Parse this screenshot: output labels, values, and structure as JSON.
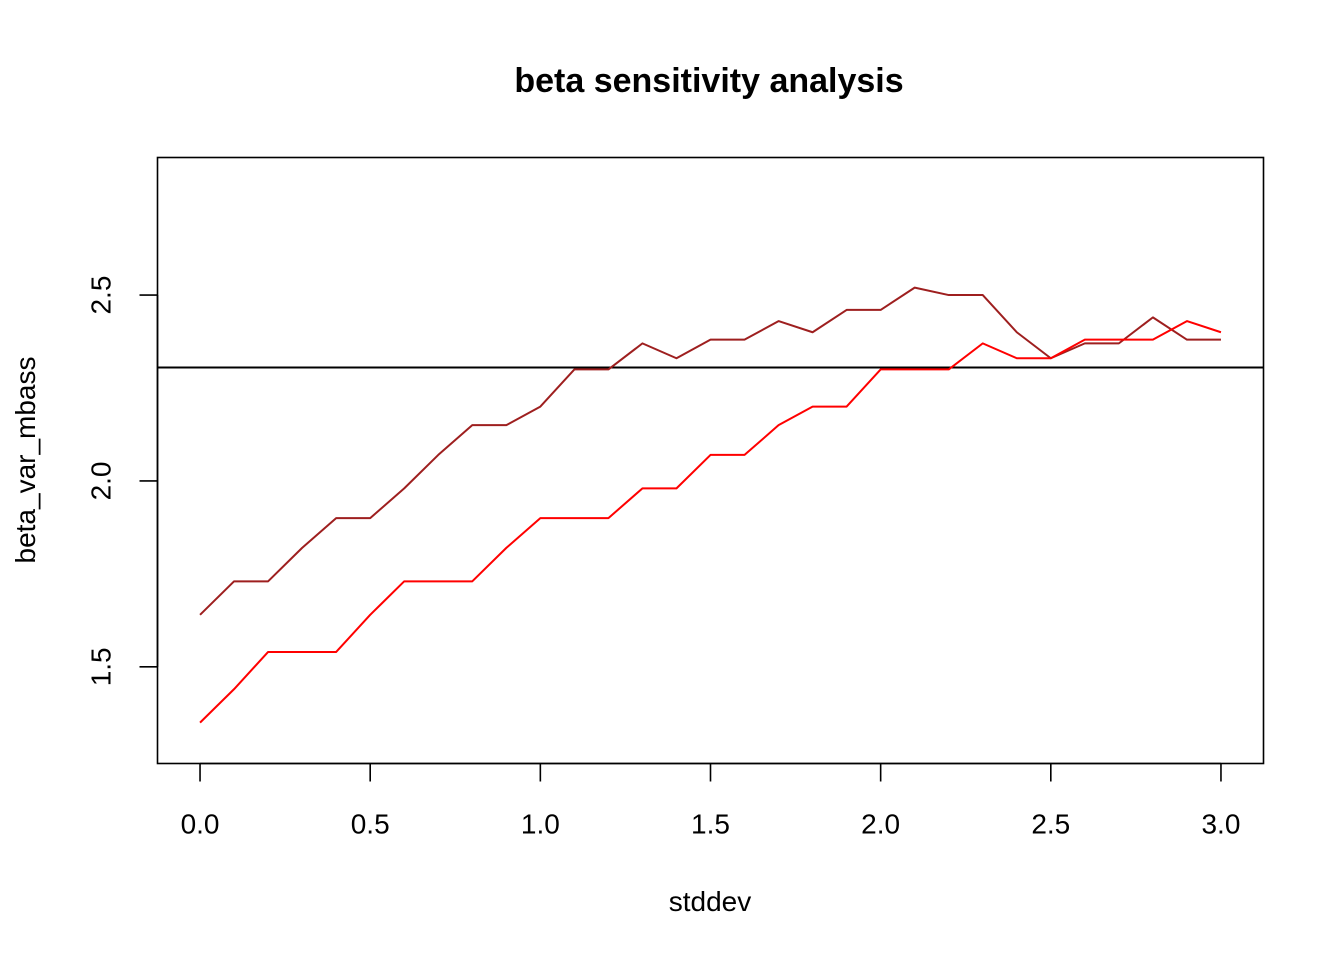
{
  "chart_data": {
    "type": "line",
    "title": "beta sensitivity analysis",
    "xlabel": "stddev",
    "ylabel": "beta_var_mbass",
    "xlim": [
      -0.125,
      3.125
    ],
    "ylim": [
      1.24,
      2.87
    ],
    "x_ticks": [
      0.0,
      0.5,
      1.0,
      1.5,
      2.0,
      2.5,
      3.0
    ],
    "x_tick_labels": [
      "0.0",
      "0.5",
      "1.0",
      "1.5",
      "2.0",
      "2.5",
      "3.0"
    ],
    "y_ticks": [
      1.5,
      2.0,
      2.5
    ],
    "y_tick_labels": [
      "1.5",
      "2.0",
      "2.5"
    ],
    "grid": false,
    "x": [
      0.0,
      0.1,
      0.2,
      0.3,
      0.4,
      0.5,
      0.6,
      0.7,
      0.8,
      0.9,
      1.0,
      1.1,
      1.2,
      1.3,
      1.4,
      1.5,
      1.6,
      1.7,
      1.8,
      1.9,
      2.0,
      2.1,
      2.2,
      2.3,
      2.4,
      2.5,
      2.6,
      2.7,
      2.8,
      2.9,
      3.0
    ],
    "series": [
      {
        "color": "#9E1F1F",
        "values": [
          1.64,
          1.73,
          1.73,
          1.82,
          1.9,
          1.9,
          1.98,
          2.07,
          2.15,
          2.15,
          2.2,
          2.3,
          2.3,
          2.37,
          2.33,
          2.38,
          2.38,
          2.43,
          2.4,
          2.46,
          2.46,
          2.52,
          2.5,
          2.5,
          2.4,
          2.33,
          2.37,
          2.37,
          2.44,
          2.38,
          2.38
        ]
      },
      {
        "color": "#FF0000",
        "values": [
          1.35,
          1.44,
          1.54,
          1.54,
          1.54,
          1.64,
          1.73,
          1.73,
          1.73,
          1.82,
          1.9,
          1.9,
          1.9,
          1.98,
          1.98,
          2.07,
          2.07,
          2.15,
          2.2,
          2.2,
          2.3,
          2.3,
          2.3,
          2.37,
          2.33,
          2.33,
          2.38,
          2.38,
          2.38,
          2.43,
          2.4
        ]
      }
    ],
    "hline": {
      "y": 2.305,
      "color": "#000000"
    }
  }
}
